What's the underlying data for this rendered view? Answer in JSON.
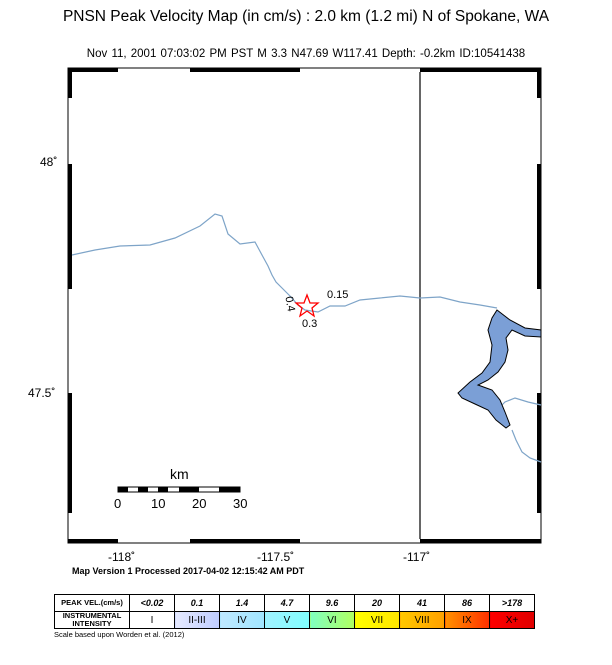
{
  "title": "PNSN Peak Velocity Map (in cm/s) : 2.0 km (1.2 mi) N of Spokane, WA",
  "subtitle": "Nov 11, 2001 07:03:02 PM PST    M 3.3    N47.69 W117.41    Depth: -0.2km    ID:10541438",
  "y_ticks": [
    "48˚",
    "47.5˚"
  ],
  "x_ticks": [
    "-118˚",
    "-117.5˚",
    "-117˚"
  ],
  "contour_labels": [
    "0.15",
    "0.4",
    "0.3"
  ],
  "scalebar": {
    "unit": "km",
    "labels": [
      "0",
      "10",
      "20",
      "30"
    ]
  },
  "processed": "Map Version 1 Processed 2017-04-02 12:15:42 AM PDT",
  "legend": {
    "row1_header": "PEAK VEL.(cm/s)",
    "row2_header": "INSTRUMENTAL INTENSITY",
    "velocities": [
      "<0.02",
      "0.1",
      "1.4",
      "4.7",
      "9.6",
      "20",
      "41",
      "86",
      ">178"
    ],
    "intensities": [
      "I",
      "II-III",
      "IV",
      "V",
      "VI",
      "VII",
      "VIII",
      "IX",
      "X+"
    ],
    "colors": [
      "#ffffff",
      "#bfccff",
      "#a0e6ff",
      "#80ffff",
      "#7aff93",
      "#ffff00",
      "#ffc800",
      "#ff9100",
      "#ff0000",
      "#c80000"
    ]
  },
  "scale_reference": "Scale based upon Worden et al. (2012)",
  "colors": {
    "water": "#7b9fd6",
    "river": "#7ea4c8",
    "epicenter": "#ff0000"
  }
}
